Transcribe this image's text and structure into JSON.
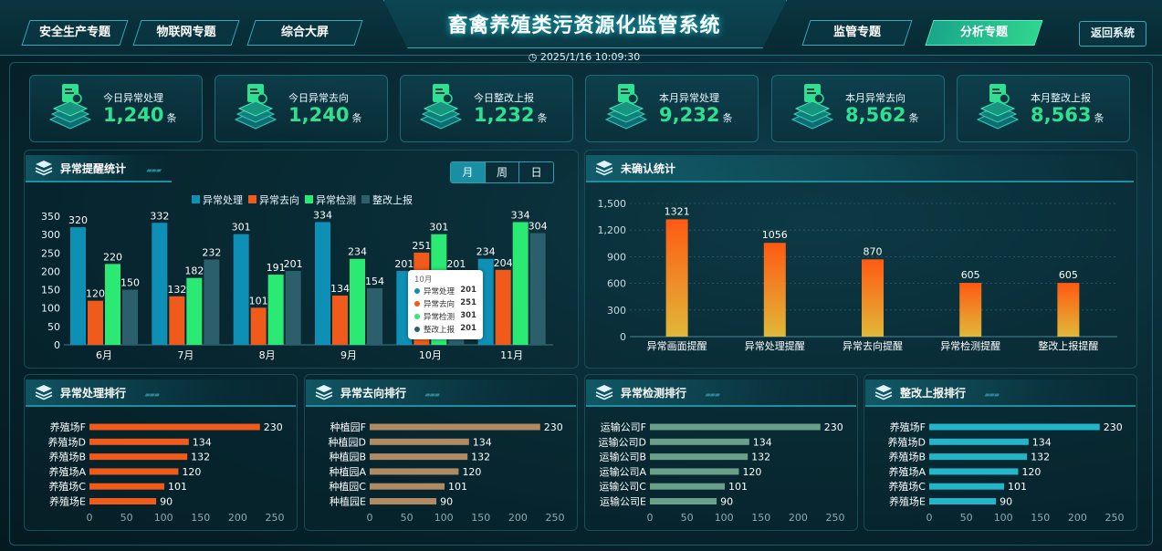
{
  "header": {
    "title": "畜禽养殖类污资源化监管系统",
    "datetime": "2025/1/16 10:09:30",
    "nav_left": [
      "安全生产专题",
      "物联网专题",
      "综合大屏"
    ],
    "nav_right": [
      "监管专题",
      "分析专题"
    ],
    "active_nav": "分析专题",
    "back_label": "返回系统"
  },
  "stats": [
    {
      "label": "今日异常处理",
      "value": "1,240",
      "unit": "条"
    },
    {
      "label": "今日异常去向",
      "value": "1,240",
      "unit": "条"
    },
    {
      "label": "今日整改上报",
      "value": "1,232",
      "unit": "条"
    },
    {
      "label": "本月异常处理",
      "value": "9,232",
      "unit": "条"
    },
    {
      "label": "本月异常去向",
      "value": "8,562",
      "unit": "条"
    },
    {
      "label": "本月整改上报",
      "value": "8,563",
      "unit": "条"
    }
  ],
  "anomaly_panel": {
    "title": "异常提醒统计",
    "periods": [
      "月",
      "周",
      "日"
    ],
    "active_period": "月",
    "tooltip": {
      "title": "10月",
      "rows": [
        {
          "name": "异常处理",
          "value": "201"
        },
        {
          "name": "异常去向",
          "value": "251"
        },
        {
          "name": "异常检测",
          "value": "301"
        },
        {
          "name": "整改上报",
          "value": "201"
        }
      ]
    }
  },
  "unconfirmed_panel": {
    "title": "未确认统计"
  },
  "rank_panels": [
    {
      "title": "异常处理排行"
    },
    {
      "title": "异常去向排行"
    },
    {
      "title": "异常检测排行"
    },
    {
      "title": "整改上报排行"
    }
  ],
  "colors": {
    "series": [
      "#0e8fb5",
      "#f05a1a",
      "#2bea73",
      "#2c5f6c"
    ],
    "rank": [
      "#f05a1a",
      "#b08a62",
      "#6a9f8a",
      "#23b5c9"
    ],
    "accent_green": "#2ee08f"
  },
  "chart_data": [
    {
      "type": "bar",
      "categories": [
        "6月",
        "7月",
        "8月",
        "9月",
        "10月",
        "11月"
      ],
      "series": [
        {
          "name": "异常处理",
          "values": [
            320,
            332,
            301,
            334,
            201,
            234
          ]
        },
        {
          "name": "异常去向",
          "values": [
            120,
            132,
            101,
            134,
            251,
            204
          ]
        },
        {
          "name": "异常检测",
          "values": [
            220,
            182,
            191,
            234,
            301,
            334
          ]
        },
        {
          "name": "整改上报",
          "values": [
            150,
            232,
            201,
            154,
            201,
            304
          ]
        }
      ],
      "yticks": [
        0,
        50,
        100,
        150,
        200,
        250,
        300,
        350
      ],
      "ylim": [
        0,
        350
      ],
      "legend": "top-center"
    },
    {
      "type": "bar",
      "categories": [
        "异常画面提醒",
        "异常处理提醒",
        "异常去向提醒",
        "异常检测提醒",
        "整改上报提醒"
      ],
      "values": [
        1321,
        1056,
        870,
        605,
        605
      ],
      "yticks": [
        "0",
        "300",
        "600",
        "900",
        "1,200",
        "1,500"
      ],
      "ylim": [
        0,
        1500
      ]
    },
    {
      "type": "bar",
      "orientation": "horizontal",
      "categories": [
        "养殖场F",
        "养殖场D",
        "养殖场B",
        "养殖场A",
        "养殖场C",
        "养殖场E"
      ],
      "values": [
        230,
        134,
        132,
        120,
        101,
        90
      ],
      "xticks": [
        0,
        50,
        100,
        150,
        200,
        250
      ]
    },
    {
      "type": "bar",
      "orientation": "horizontal",
      "categories": [
        "种植园F",
        "种植园D",
        "种植园B",
        "种植园A",
        "种植园C",
        "种植园E"
      ],
      "values": [
        230,
        134,
        132,
        120,
        101,
        90
      ],
      "xticks": [
        0,
        50,
        100,
        150,
        200,
        250
      ]
    },
    {
      "type": "bar",
      "orientation": "horizontal",
      "categories": [
        "运输公司F",
        "运输公司D",
        "运输公司B",
        "运输公司A",
        "运输公司C",
        "运输公司E"
      ],
      "values": [
        230,
        134,
        132,
        120,
        101,
        90
      ],
      "xticks": [
        0,
        50,
        100,
        150,
        200,
        250
      ]
    },
    {
      "type": "bar",
      "orientation": "horizontal",
      "categories": [
        "养殖场F",
        "养殖场D",
        "养殖场B",
        "养殖场A",
        "养殖场C",
        "养殖场E"
      ],
      "values": [
        230,
        134,
        132,
        120,
        101,
        90
      ],
      "xticks": [
        0,
        50,
        100,
        150,
        200,
        250
      ]
    }
  ]
}
